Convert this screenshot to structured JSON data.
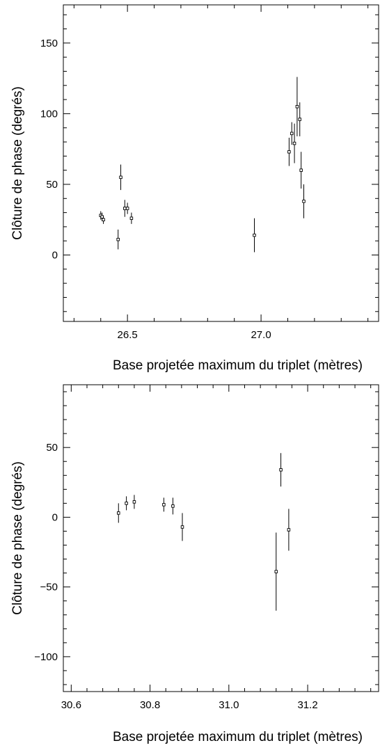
{
  "chart_data": [
    {
      "type": "scatter",
      "title": "",
      "xlabel": "Base projetée maximum du triplet (mètres)",
      "ylabel": "Clôture de phase (degrés)",
      "xlim": [
        26.26,
        27.44
      ],
      "ylim": [
        -47,
        177
      ],
      "xticks": [
        26.5,
        27.0
      ],
      "xtick_labels": [
        "26.5",
        "27.0"
      ],
      "yticks": [
        0,
        50,
        100,
        150
      ],
      "ytick_labels": [
        "0",
        "50",
        "100",
        "150"
      ],
      "grid": false,
      "series": [
        {
          "points": [
            {
              "x": 26.4,
              "y": 28,
              "err": 3
            },
            {
              "x": 26.405,
              "y": 27,
              "err": 3
            },
            {
              "x": 26.41,
              "y": 25,
              "err": 3
            },
            {
              "x": 26.465,
              "y": 11,
              "err": 7
            },
            {
              "x": 26.475,
              "y": 55,
              "err": 9
            },
            {
              "x": 26.49,
              "y": 33,
              "err": 6
            },
            {
              "x": 26.5,
              "y": 33,
              "err": 4
            },
            {
              "x": 26.515,
              "y": 26,
              "err": 4
            },
            {
              "x": 26.975,
              "y": 14,
              "err": 12
            },
            {
              "x": 27.105,
              "y": 73,
              "err": 10
            },
            {
              "x": 27.115,
              "y": 86,
              "err": 8
            },
            {
              "x": 27.125,
              "y": 79,
              "err": 14
            },
            {
              "x": 27.135,
              "y": 105,
              "err": 21
            },
            {
              "x": 27.145,
              "y": 96,
              "err": 12
            },
            {
              "x": 27.15,
              "y": 60,
              "err": 13
            },
            {
              "x": 27.16,
              "y": 38,
              "err": 12
            }
          ]
        }
      ]
    },
    {
      "type": "scatter",
      "title": "",
      "xlabel": "Base projetée maximum du triplet (mètres)",
      "ylabel": "Clôture de phase (degrés)",
      "xlim": [
        30.58,
        31.38
      ],
      "ylim": [
        -125,
        95
      ],
      "xticks": [
        30.6,
        30.8,
        31.0,
        31.2
      ],
      "xtick_labels": [
        "30.6",
        "30.8",
        "31.0",
        "31.2"
      ],
      "yticks": [
        -100,
        -50,
        0,
        50
      ],
      "ytick_labels": [
        "−100",
        "−50",
        "0",
        "50"
      ],
      "grid": false,
      "series": [
        {
          "points": [
            {
              "x": 30.72,
              "y": 3,
              "err": 7
            },
            {
              "x": 30.74,
              "y": 10,
              "err": 5
            },
            {
              "x": 30.76,
              "y": 11,
              "err": 5
            },
            {
              "x": 30.835,
              "y": 9,
              "err": 5
            },
            {
              "x": 30.858,
              "y": 8,
              "err": 6
            },
            {
              "x": 30.882,
              "y": -7,
              "err": 10
            },
            {
              "x": 31.12,
              "y": -39,
              "err": 28
            },
            {
              "x": 31.132,
              "y": 34,
              "err": 12
            },
            {
              "x": 31.152,
              "y": -9,
              "err": 15
            }
          ]
        }
      ]
    }
  ]
}
